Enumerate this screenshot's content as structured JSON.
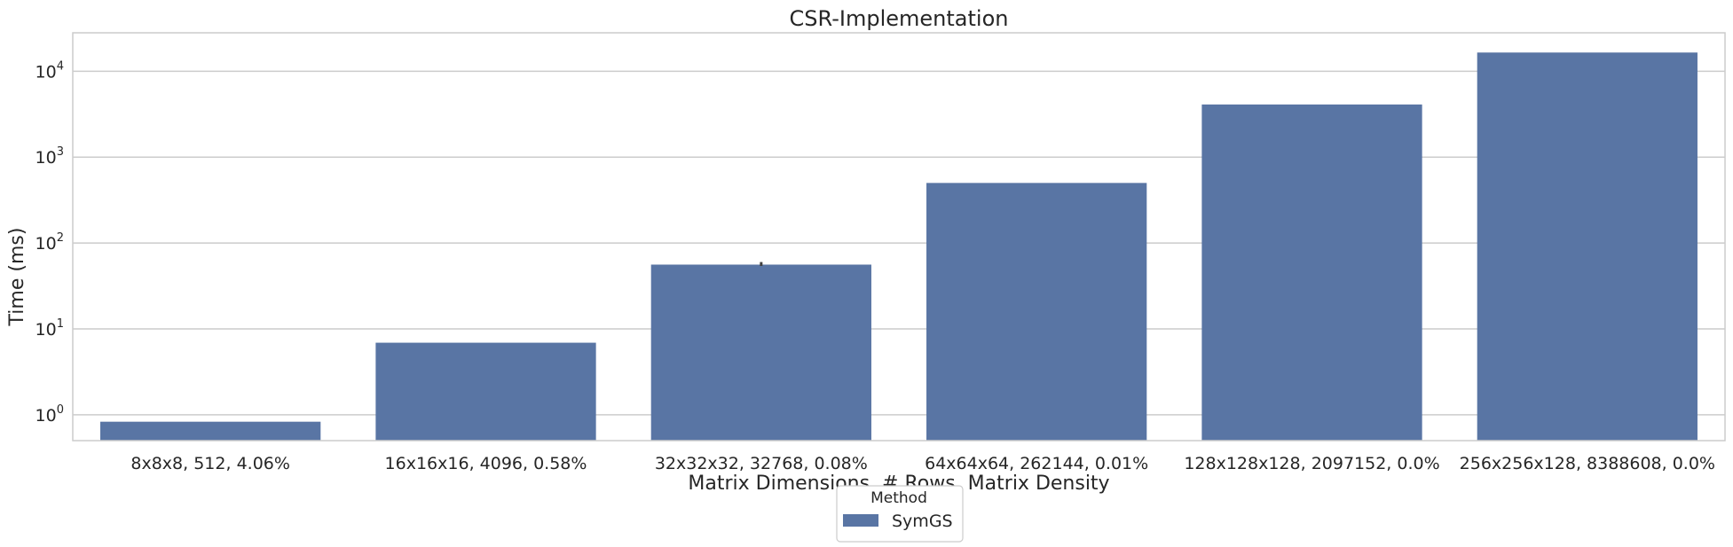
{
  "chart_data": {
    "type": "bar",
    "title": "CSR-Implementation",
    "xlabel": "Matrix Dimensions, # Rows, Matrix Density",
    "ylabel": "Time (ms)",
    "yscale": "log",
    "ylim": [
      0.5,
      28000
    ],
    "ytick_values": [
      1,
      10,
      100,
      1000,
      10000
    ],
    "categories": [
      "8x8x8, 512, 4.06%",
      "16x16x16, 4096, 0.58%",
      "32x32x32, 32768, 0.08%",
      "64x64x64, 262144, 0.01%",
      "128x128x128, 2097152, 0.0%",
      "256x256x128, 8388608, 0.0%"
    ],
    "series": [
      {
        "name": "SymGS",
        "color": "#5975a4",
        "values": [
          0.83,
          6.9,
          56,
          500,
          4100,
          16500
        ],
        "error_bars": [
          null,
          null,
          [
            54,
            60
          ],
          null,
          null,
          null
        ]
      }
    ],
    "grid": "horizontal",
    "legend": {
      "title": "Method",
      "placement": "bottom-center"
    }
  }
}
